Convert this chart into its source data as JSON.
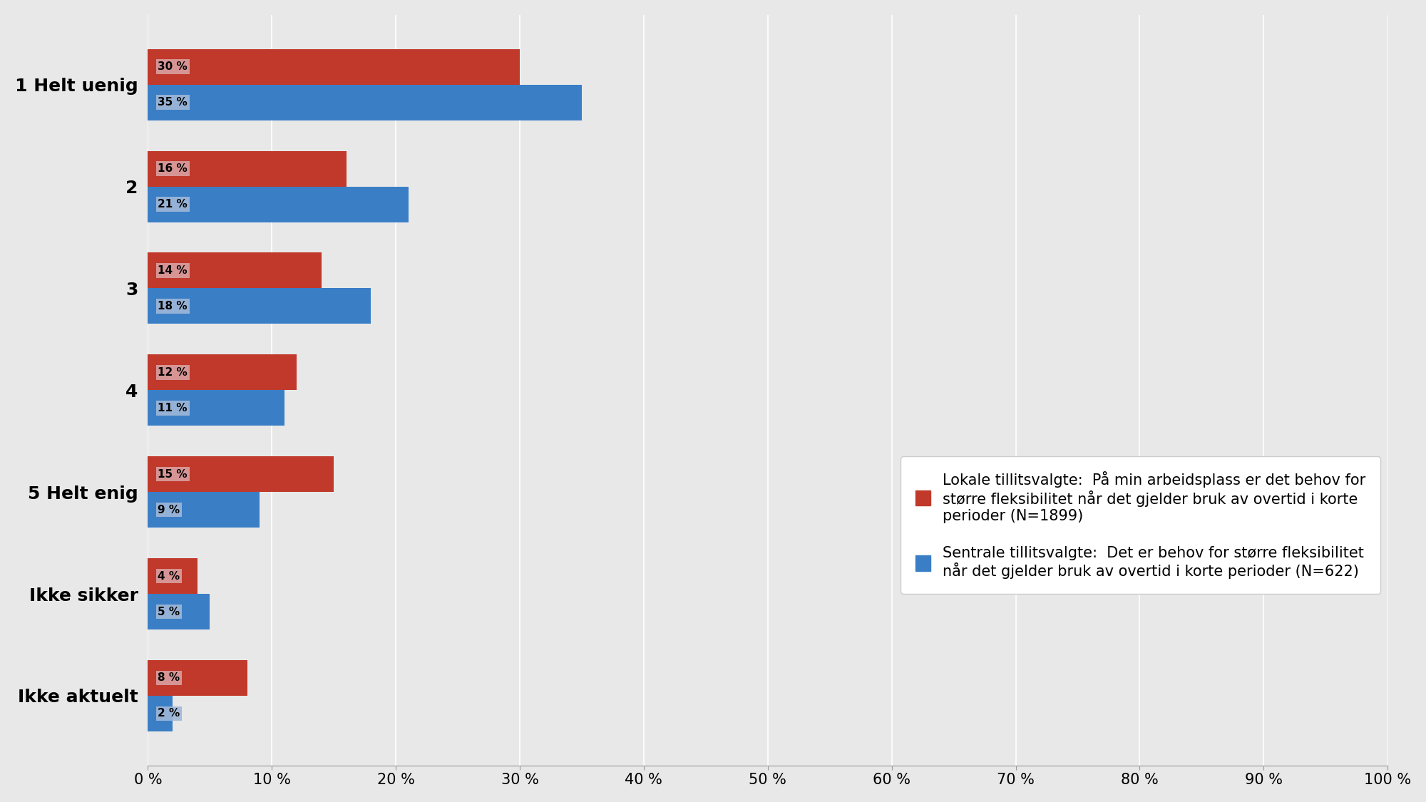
{
  "categories": [
    "1 Helt uenig",
    "2",
    "3",
    "4",
    "5 Helt enig",
    "Ikke sikker",
    "Ikke aktuelt"
  ],
  "red_values": [
    30,
    16,
    14,
    12,
    15,
    4,
    8
  ],
  "blue_values": [
    35,
    21,
    18,
    11,
    9,
    5,
    2
  ],
  "red_color": "#C0392B",
  "blue_color": "#3A7EC6",
  "red_label": "Lokale tillitsvalgte:  På min arbeidsplass er det behov for\nstørre fleksibilitet når det gjelder bruk av overtid i korte\nperioder (N=1899)",
  "blue_label": "Sentrale tillitsvalgte:  Det er behov for større fleksibilitet\nnår det gjelder bruk av overtid i korte perioder (N=622)",
  "xlim": [
    0,
    100
  ],
  "xticks": [
    0,
    10,
    20,
    30,
    40,
    50,
    60,
    70,
    80,
    90,
    100
  ],
  "background_color": "#E8E8E8",
  "plot_bg_color": "#E8E8E8",
  "bar_height": 0.35,
  "label_fontsize": 18,
  "tick_fontsize": 15,
  "legend_fontsize": 15,
  "red_label_bg": "#D9A0A0",
  "blue_label_bg": "#A0B8D8"
}
